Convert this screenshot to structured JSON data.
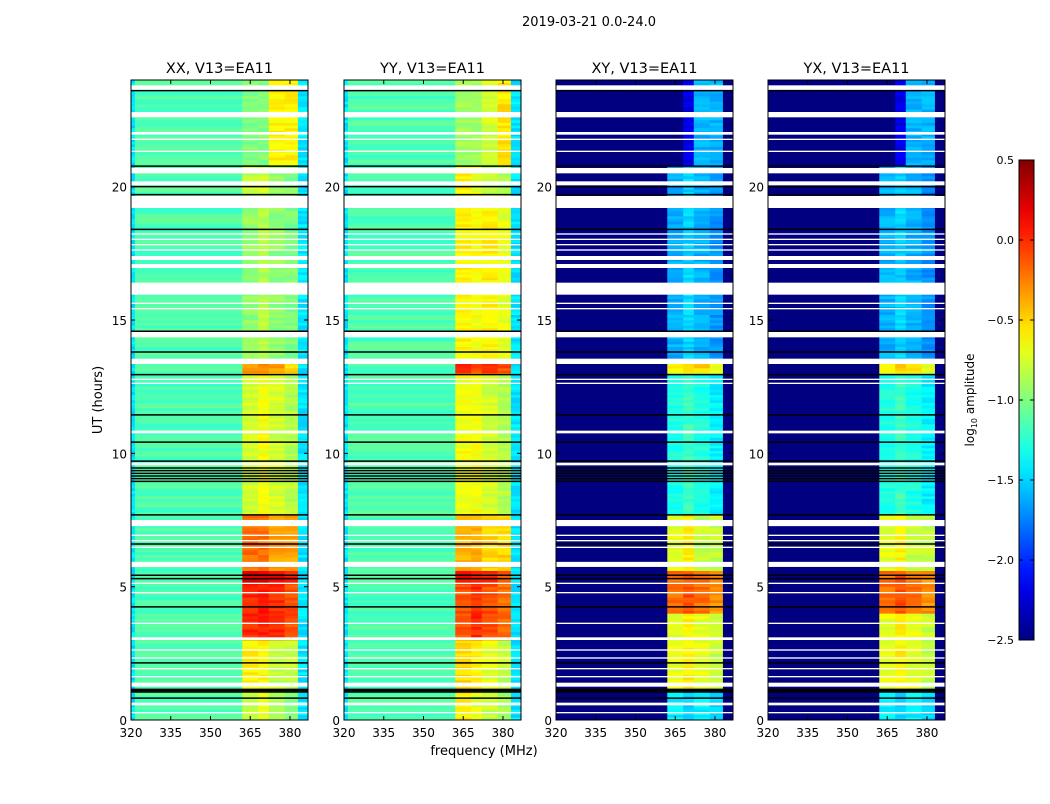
{
  "chart_data": {
    "type": "heatmap",
    "title": "2019-03-21 0.0-24.0",
    "xlabel": "frequency (MHz)",
    "ylabel": "UT (hours)",
    "xlim": [
      320,
      386.8
    ],
    "ylim": [
      0,
      24
    ],
    "xticks": [
      320,
      335,
      350,
      365,
      380
    ],
    "yticks": [
      0,
      5,
      10,
      15,
      20
    ],
    "colorbar": {
      "label_main": "log",
      "label_sub": "10",
      "label_rest": " amplitude",
      "vmin": -2.5,
      "vmax": 0.5,
      "colormap": "jet",
      "ticks": [
        0.5,
        0.0,
        -0.5,
        -1.0,
        -1.5,
        -2.0,
        -2.5
      ],
      "tick_labels": [
        "0.5",
        "0.0",
        "−0.5",
        "−1.0",
        "−1.5",
        "−2.0",
        "−2.5"
      ]
    },
    "freq_bins_mhz": [
      320,
      321.5,
      362,
      368,
      372,
      378,
      383,
      386.8
    ],
    "flagged_hours": [
      [
        23.6,
        23.8
      ],
      [
        22.6,
        22.8
      ],
      [
        21.95,
        22.05
      ],
      [
        21.75,
        21.8
      ],
      [
        21.3,
        21.35
      ],
      [
        20.5,
        20.7
      ],
      [
        20.05,
        20.2
      ],
      [
        19.2,
        19.65
      ],
      [
        18.2,
        18.25
      ],
      [
        18.0,
        18.05
      ],
      [
        17.8,
        17.85
      ],
      [
        17.6,
        17.65
      ],
      [
        17.25,
        17.4
      ],
      [
        16.95,
        17.1
      ],
      [
        15.95,
        16.4
      ],
      [
        15.6,
        15.65
      ],
      [
        15.4,
        15.45
      ],
      [
        14.35,
        14.55
      ],
      [
        13.35,
        13.55
      ],
      [
        12.75,
        12.8
      ],
      [
        12.6,
        12.65
      ],
      [
        10.75,
        10.85
      ],
      [
        9.55,
        9.65
      ],
      [
        7.27,
        7.5
      ],
      [
        6.9,
        6.95
      ],
      [
        6.7,
        6.75
      ],
      [
        6.45,
        6.5
      ],
      [
        5.74,
        5.93
      ],
      [
        5.1,
        5.15
      ],
      [
        4.75,
        4.8
      ],
      [
        3.6,
        3.65
      ],
      [
        3.0,
        3.1
      ],
      [
        2.6,
        2.65
      ],
      [
        2.3,
        2.35
      ],
      [
        1.9,
        1.95
      ],
      [
        1.6,
        1.65
      ],
      [
        1.25,
        1.4
      ],
      [
        0.55,
        0.65
      ],
      [
        0.25,
        0.3
      ]
    ],
    "boundary_hours": [
      23.6,
      20.77,
      20.0,
      19.7,
      18.4,
      14.58,
      13.8,
      12.95,
      11.44,
      10.42,
      9.71,
      9.45,
      9.35,
      9.25,
      9.15,
      9.05,
      8.95,
      7.69,
      6.6,
      5.43,
      5.3,
      4.24,
      2.14,
      1.1,
      1.15,
      1.05,
      0.82
    ],
    "panels": [
      {
        "title": "XX, V13=EA11",
        "background": -1.15,
        "edge": -1.45,
        "rfi_segments": [
          {
            "t": [
              0,
              1.05
            ],
            "v": [
              -0.8,
              -0.7,
              -0.9,
              -1.0
            ]
          },
          {
            "t": [
              1.05,
              3.0
            ],
            "v": [
              -0.6,
              -0.6,
              -0.8,
              -0.8
            ]
          },
          {
            "t": [
              3.0,
              5.0
            ],
            "v": [
              0.0,
              0.05,
              0.0,
              -0.1
            ]
          },
          {
            "t": [
              5.0,
              5.5
            ],
            "v": [
              0.2,
              0.2,
              0.1,
              0.0
            ]
          },
          {
            "t": [
              5.5,
              7.6
            ],
            "v": [
              -0.2,
              -0.2,
              -0.35,
              -0.35
            ]
          },
          {
            "t": [
              7.6,
              12.9
            ],
            "v": [
              -0.75,
              -0.65,
              -0.75,
              -0.85
            ]
          },
          {
            "t": [
              12.9,
              13.3
            ],
            "v": [
              -0.3,
              -0.3,
              -0.35,
              -0.5
            ]
          },
          {
            "t": [
              13.3,
              19.7
            ],
            "v": [
              -0.95,
              -0.85,
              -0.95,
              -1.0
            ]
          },
          {
            "t": [
              19.7,
              20.8
            ],
            "v": [
              -0.8,
              -0.75,
              -0.9,
              -1.0
            ]
          },
          {
            "t": [
              20.8,
              24
            ],
            "v": [
              -1.0,
              -1.0,
              -0.6,
              -0.6
            ]
          }
        ]
      },
      {
        "title": "YY, V13=EA11",
        "background": -1.15,
        "edge": -1.45,
        "rfi_segments": [
          {
            "t": [
              0,
              1.05
            ],
            "v": [
              -0.6,
              -0.7,
              -0.8,
              -0.9
            ]
          },
          {
            "t": [
              1.05,
              3.0
            ],
            "v": [
              -0.5,
              -0.6,
              -0.7,
              -0.8
            ]
          },
          {
            "t": [
              3.0,
              5.0
            ],
            "v": [
              -0.1,
              0.0,
              -0.1,
              -0.2
            ]
          },
          {
            "t": [
              5.0,
              5.5
            ],
            "v": [
              0.1,
              0.1,
              0.0,
              -0.1
            ]
          },
          {
            "t": [
              5.5,
              7.6
            ],
            "v": [
              -0.4,
              -0.4,
              -0.5,
              -0.5
            ]
          },
          {
            "t": [
              7.6,
              12.9
            ],
            "v": [
              -0.65,
              -0.65,
              -0.75,
              -0.85
            ]
          },
          {
            "t": [
              12.9,
              13.3
            ],
            "v": [
              0.0,
              -0.1,
              0.0,
              -0.1
            ]
          },
          {
            "t": [
              13.3,
              19.7
            ],
            "v": [
              -0.6,
              -0.65,
              -0.6,
              -0.7
            ]
          },
          {
            "t": [
              19.7,
              20.8
            ],
            "v": [
              -0.6,
              -0.7,
              -0.8,
              -0.9
            ]
          },
          {
            "t": [
              20.8,
              24
            ],
            "v": [
              -0.9,
              -0.9,
              -0.75,
              -0.55
            ]
          }
        ]
      },
      {
        "title": "XY, V13=EA11",
        "background": -2.5,
        "edge": -2.5,
        "rfi_segments": [
          {
            "t": [
              0,
              1.05
            ],
            "v": [
              -1.4,
              -1.5,
              -1.4,
              -1.5
            ]
          },
          {
            "t": [
              1.05,
              4.0
            ],
            "v": [
              -0.7,
              -0.6,
              -0.7,
              -0.8
            ]
          },
          {
            "t": [
              4.0,
              5.5
            ],
            "v": [
              -0.2,
              -0.1,
              -0.2,
              -0.3
            ]
          },
          {
            "t": [
              5.5,
              7.6
            ],
            "v": [
              -0.7,
              -0.6,
              -0.8,
              -0.8
            ]
          },
          {
            "t": [
              7.6,
              12.9
            ],
            "v": [
              -1.3,
              -1.2,
              -1.3,
              -1.4
            ]
          },
          {
            "t": [
              12.9,
              13.3
            ],
            "v": [
              -0.6,
              -0.5,
              -0.5,
              -0.7
            ]
          },
          {
            "t": [
              13.3,
              20.8
            ],
            "v": [
              -1.6,
              -1.5,
              -1.6,
              -1.7
            ]
          },
          {
            "t": [
              20.8,
              24
            ],
            "v": [
              -2.5,
              -2.2,
              -1.6,
              -1.6
            ]
          }
        ]
      },
      {
        "title": "YX, V13=EA11",
        "background": -2.5,
        "edge": -2.5,
        "rfi_segments": [
          {
            "t": [
              0,
              1.05
            ],
            "v": [
              -1.4,
              -1.5,
              -1.4,
              -1.5
            ]
          },
          {
            "t": [
              1.05,
              4.0
            ],
            "v": [
              -0.7,
              -0.6,
              -0.7,
              -0.8
            ]
          },
          {
            "t": [
              4.0,
              5.5
            ],
            "v": [
              -0.2,
              -0.1,
              -0.2,
              -0.3
            ]
          },
          {
            "t": [
              5.5,
              7.6
            ],
            "v": [
              -0.7,
              -0.6,
              -0.8,
              -0.8
            ]
          },
          {
            "t": [
              7.6,
              12.9
            ],
            "v": [
              -1.3,
              -1.2,
              -1.3,
              -1.4
            ]
          },
          {
            "t": [
              12.9,
              13.3
            ],
            "v": [
              -0.6,
              -0.5,
              -0.5,
              -0.7
            ]
          },
          {
            "t": [
              13.3,
              20.8
            ],
            "v": [
              -1.6,
              -1.5,
              -1.6,
              -1.7
            ]
          },
          {
            "t": [
              20.8,
              24
            ],
            "v": [
              -2.5,
              -2.2,
              -1.6,
              -1.6
            ]
          }
        ]
      }
    ]
  }
}
